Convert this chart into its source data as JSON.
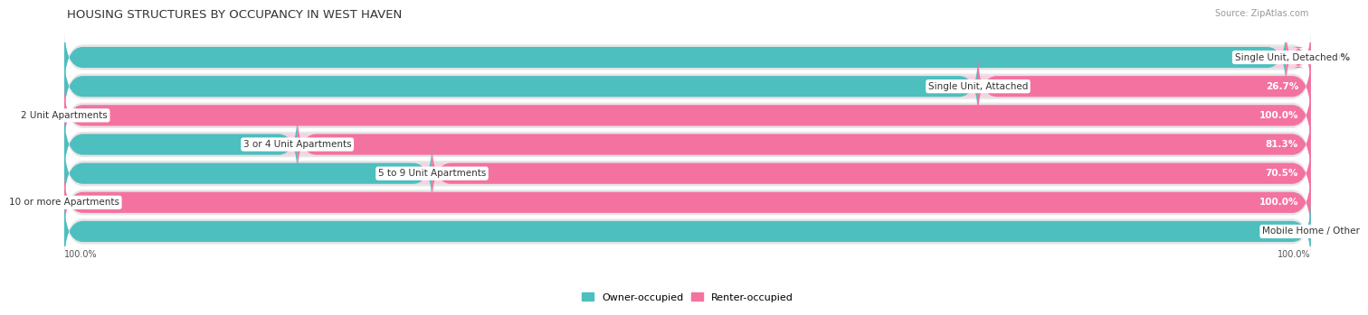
{
  "title": "HOUSING STRUCTURES BY OCCUPANCY IN WEST HAVEN",
  "source": "Source: ZipAtlas.com",
  "categories": [
    "Single Unit, Detached",
    "Single Unit, Attached",
    "2 Unit Apartments",
    "3 or 4 Unit Apartments",
    "5 to 9 Unit Apartments",
    "10 or more Apartments",
    "Mobile Home / Other"
  ],
  "owner_pct": [
    98.0,
    73.3,
    0.0,
    18.7,
    29.5,
    0.0,
    100.0
  ],
  "renter_pct": [
    2.0,
    26.7,
    100.0,
    81.3,
    70.5,
    100.0,
    0.0
  ],
  "owner_color": "#4dbfbf",
  "renter_color": "#f472a0",
  "background_color": "#f0f0f0",
  "bar_background": "#dcdcdc",
  "row_background": "#e8e8e8",
  "legend_owner": "Owner-occupied",
  "legend_renter": "Renter-occupied"
}
